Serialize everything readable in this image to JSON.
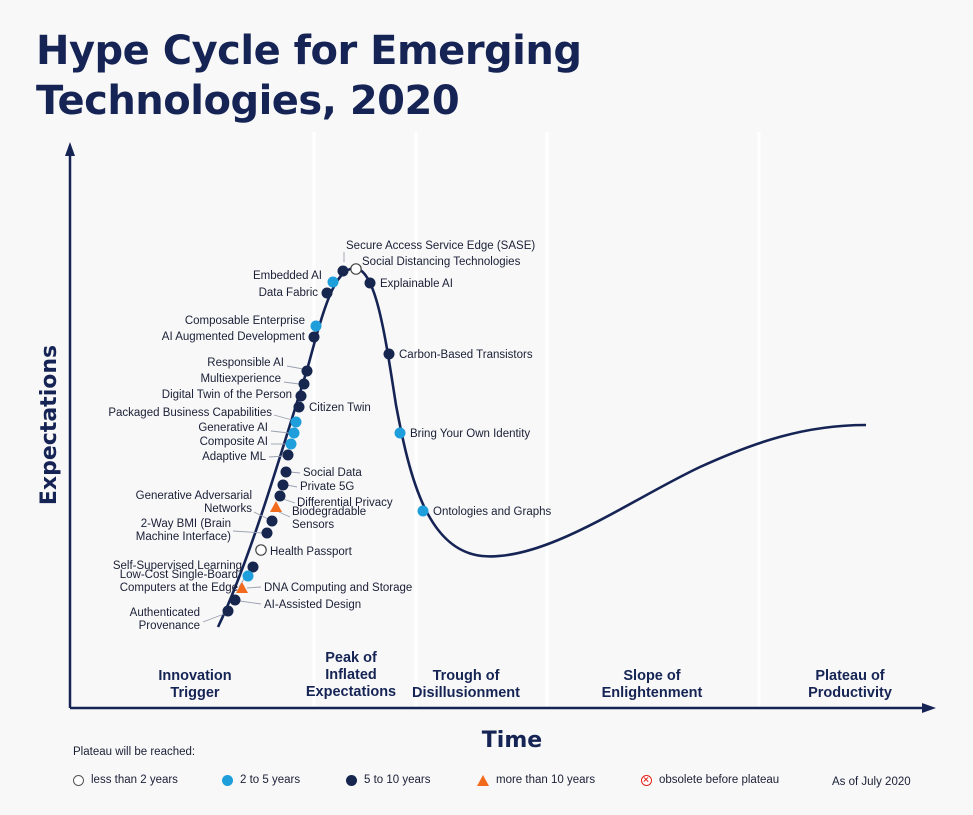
{
  "title_line1": "Hype Cycle for Emerging",
  "title_line2": "Technologies, 2020",
  "chart_data": {
    "type": "line",
    "title": "Hype Cycle for Emerging Technologies, 2020",
    "xlabel": "Time",
    "ylabel": "Expectations",
    "phases": [
      {
        "lines": [
          "Innovation",
          "Trigger"
        ]
      },
      {
        "lines": [
          "Peak of",
          "Inflated",
          "Expectations"
        ]
      },
      {
        "lines": [
          "Trough of",
          "Disillusionment"
        ]
      },
      {
        "lines": [
          "Slope of",
          "Enlightenment"
        ]
      },
      {
        "lines": [
          "Plateau of",
          "Productivity"
        ]
      }
    ],
    "categories": {
      "less_than_2": "less than 2 years",
      "2_to_5": "2 to 5 years",
      "5_to_10": "5 to 10 years",
      "more_than_10": "more than 10 years",
      "obsolete": "obsolete before plateau"
    },
    "colors": {
      "navy": "#152454",
      "light_blue": "#1e9fdc",
      "dark_blue": "#16264f",
      "orange": "#f26b1d",
      "red": "#e2231a"
    },
    "technologies": [
      {
        "lines": [
          "Secure Access Service Edge (SASE)"
        ],
        "category": "5_to_10"
      },
      {
        "lines": [
          "Social Distancing Technologies"
        ],
        "category": "less_than_2"
      },
      {
        "lines": [
          "Embedded AI"
        ],
        "category": "2_to_5"
      },
      {
        "lines": [
          "Data Fabric"
        ],
        "category": "5_to_10"
      },
      {
        "lines": [
          "Explainable AI"
        ],
        "category": "5_to_10"
      },
      {
        "lines": [
          "Composable Enterprise"
        ],
        "category": "2_to_5"
      },
      {
        "lines": [
          "AI Augmented Development"
        ],
        "category": "5_to_10"
      },
      {
        "lines": [
          "Carbon-Based Transistors"
        ],
        "category": "5_to_10"
      },
      {
        "lines": [
          "Responsible AI"
        ],
        "category": "5_to_10"
      },
      {
        "lines": [
          "Multiexperience"
        ],
        "category": "5_to_10"
      },
      {
        "lines": [
          "Digital Twin of the Person"
        ],
        "category": "5_to_10"
      },
      {
        "lines": [
          "Citizen Twin"
        ],
        "category": "5_to_10"
      },
      {
        "lines": [
          "Packaged Business Capabilities"
        ],
        "category": "2_to_5"
      },
      {
        "lines": [
          "Generative AI"
        ],
        "category": "2_to_5"
      },
      {
        "lines": [
          "Composite AI"
        ],
        "category": "2_to_5"
      },
      {
        "lines": [
          "Bring Your Own Identity"
        ],
        "category": "2_to_5"
      },
      {
        "lines": [
          "Adaptive ML"
        ],
        "category": "5_to_10"
      },
      {
        "lines": [
          "Social Data"
        ],
        "category": "5_to_10"
      },
      {
        "lines": [
          "Private 5G"
        ],
        "category": "5_to_10"
      },
      {
        "lines": [
          "Differential Privacy"
        ],
        "category": "5_to_10"
      },
      {
        "lines": [
          "Generative Adversarial",
          "Networks"
        ],
        "category": "5_to_10"
      },
      {
        "lines": [
          "Biodegradable",
          "Sensors"
        ],
        "category": "more_than_10"
      },
      {
        "lines": [
          "Ontologies and Graphs"
        ],
        "category": "2_to_5"
      },
      {
        "lines": [
          "2-Way BMI (Brain",
          "Machine Interface)"
        ],
        "category": "5_to_10"
      },
      {
        "lines": [
          "Health Passport"
        ],
        "category": "less_than_2"
      },
      {
        "lines": [
          "Self-Supervised Learning"
        ],
        "category": "5_to_10"
      },
      {
        "lines": [
          "Low-Cost Single-Board",
          "Computers at the Edge"
        ],
        "category": "2_to_5"
      },
      {
        "lines": [
          "DNA Computing and Storage"
        ],
        "category": "more_than_10"
      },
      {
        "lines": [
          "AI-Assisted Design"
        ],
        "category": "5_to_10"
      },
      {
        "lines": [
          "Authenticated",
          "Provenance"
        ],
        "category": "5_to_10"
      }
    ]
  },
  "legend": {
    "heading": "Plateau will be reached:",
    "items": [
      {
        "label": "less than 2 years"
      },
      {
        "label": "2 to 5 years"
      },
      {
        "label": "5 to 10 years"
      },
      {
        "label": "more than 10 years"
      },
      {
        "label": "obsolete before plateau"
      }
    ],
    "as_of": "As of July 2020"
  }
}
